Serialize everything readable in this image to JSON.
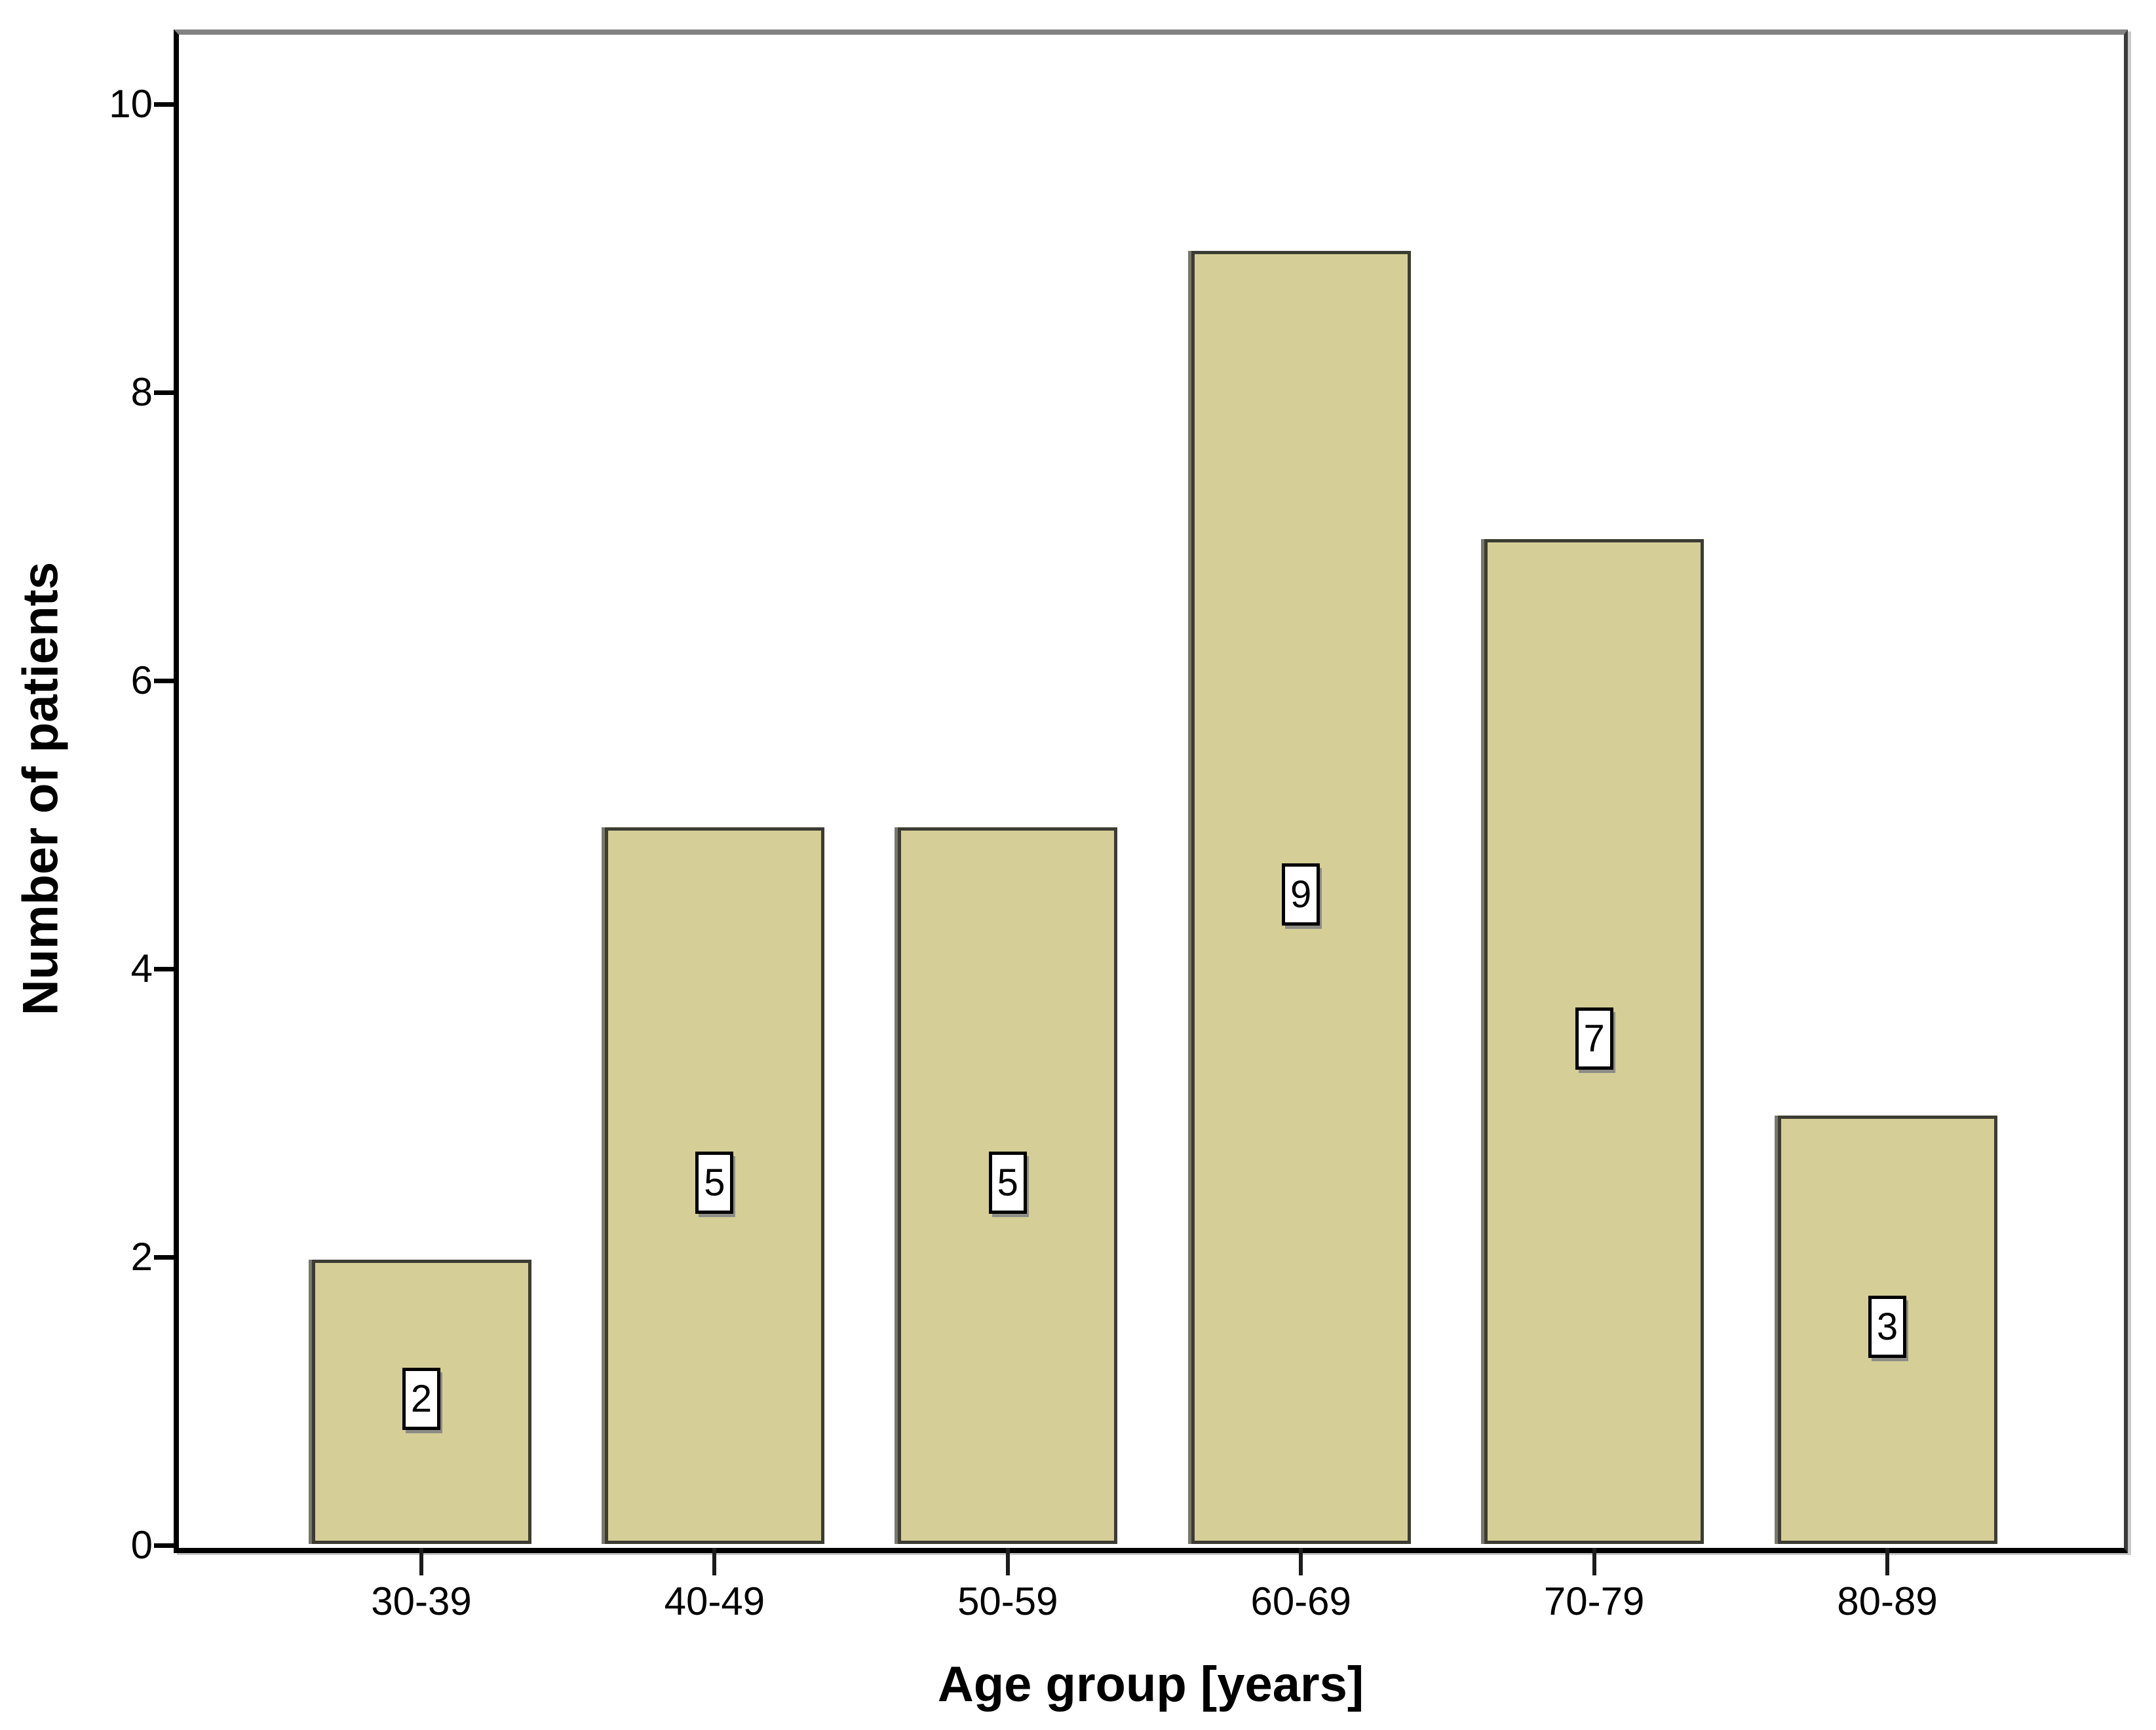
{
  "chart_data": {
    "type": "bar",
    "title": "",
    "categories": [
      "30-39",
      "40-49",
      "50-59",
      "60-69",
      "70-79",
      "80-89"
    ],
    "values": [
      2,
      5,
      5,
      9,
      7,
      3
    ],
    "bar_value_labels": [
      "2",
      "5",
      "5",
      "9",
      "7",
      "3"
    ],
    "xlabel": "Age group [years]",
    "ylabel": "Number of patients",
    "y_ticks": [
      0,
      2,
      4,
      6,
      8,
      10
    ],
    "ylim": [
      0,
      10.5
    ],
    "grid": false,
    "legend_position": "none",
    "colors": {
      "bar_fill": "#d5ce97",
      "bar_border": "#3c3c32",
      "bar_left_shadow": "#79786f",
      "frame_top": "#828282",
      "axis": "#000000",
      "value_box_bg": "#ffffff",
      "value_box_border": "#000000",
      "value_box_shadow": "#8d8c86",
      "text": "#000000",
      "background": "#ffffff"
    }
  }
}
